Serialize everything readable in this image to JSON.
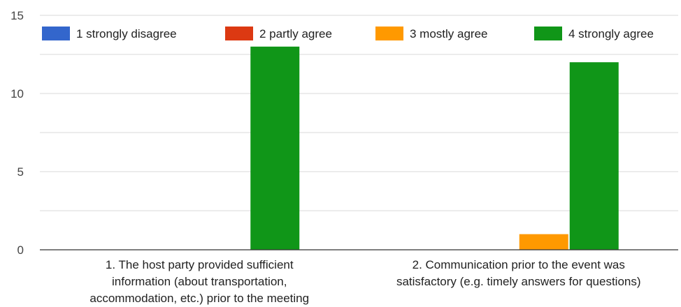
{
  "chart_data": {
    "type": "bar",
    "categories": [
      "1. The host party provided sufficient information (about transportation, accommodation, etc.) prior to the meeting",
      "2. Communication prior to the event was satisfactory (e.g. timely answers for questions)"
    ],
    "category_label_lines": [
      [
        "1. The host party provided sufficient",
        "information (about transportation,",
        "accommodation, etc.) prior to the meeting"
      ],
      [
        "2. Communication prior to the event was",
        "satisfactory (e.g. timely answers for questions)"
      ]
    ],
    "series": [
      {
        "name": "1 strongly disagree",
        "color": "#3366cc",
        "values": [
          0,
          0
        ]
      },
      {
        "name": "2 partly agree",
        "color": "#dc3912",
        "values": [
          0,
          0
        ]
      },
      {
        "name": "3 mostly agree",
        "color": "#ff9900",
        "values": [
          0,
          1
        ]
      },
      {
        "name": "4 strongly agree",
        "color": "#109618",
        "values": [
          13,
          12
        ]
      }
    ],
    "ylim": [
      0,
      15
    ],
    "yticks": [
      0,
      5,
      10,
      15
    ],
    "grid": true,
    "legend_position": "top"
  }
}
